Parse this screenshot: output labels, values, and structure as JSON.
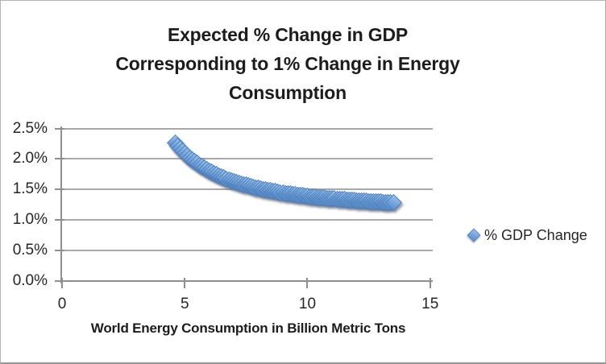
{
  "chart_data": {
    "type": "scatter",
    "title_lines": [
      "Expected % Change in GDP",
      "Corresponding to 1% Change in Energy",
      "Consumption"
    ],
    "xlabel": "World Energy Consumption in Billion Metric Tons",
    "ylabel": "",
    "x_ticks": [
      "0",
      "5",
      "10",
      "15"
    ],
    "x_tick_values": [
      0,
      5,
      10,
      15
    ],
    "y_tick_labels": [
      "0.0%",
      "0.5%",
      "1.0%",
      "1.5%",
      "2.0%",
      "2.5%"
    ],
    "y_tick_values": [
      0.0,
      0.5,
      1.0,
      1.5,
      2.0,
      2.5
    ],
    "xlim": [
      0,
      15
    ],
    "ylim_percent": [
      0,
      2.5
    ],
    "grid": "horizontal-only",
    "legend_position": "middle-right",
    "series": [
      {
        "name": "% GDP Change",
        "marker": "diamond",
        "points_x_billion_metric_tons_y_pct_gdp_change": [
          [
            4.6,
            2.257
          ],
          [
            4.7,
            2.21
          ],
          [
            4.8,
            2.166
          ],
          [
            4.9,
            2.126
          ],
          [
            5,
            2.087
          ],
          [
            5.1,
            2.051
          ],
          [
            5.2,
            2.017
          ],
          [
            5.3,
            1.984
          ],
          [
            5.4,
            1.954
          ],
          [
            5.5,
            1.925
          ],
          [
            5.6,
            1.898
          ],
          [
            5.7,
            1.872
          ],
          [
            5.8,
            1.847
          ],
          [
            5.9,
            1.824
          ],
          [
            6,
            1.802
          ],
          [
            6.1,
            1.781
          ],
          [
            6.2,
            1.76
          ],
          [
            6.3,
            1.741
          ],
          [
            6.4,
            1.723
          ],
          [
            6.5,
            1.706
          ],
          [
            6.6,
            1.689
          ],
          [
            6.7,
            1.673
          ],
          [
            6.8,
            1.658
          ],
          [
            6.9,
            1.643
          ],
          [
            7,
            1.63
          ],
          [
            7.1,
            1.616
          ],
          [
            7.2,
            1.603
          ],
          [
            7.3,
            1.591
          ],
          [
            7.4,
            1.579
          ],
          [
            7.5,
            1.568
          ],
          [
            7.6,
            1.557
          ],
          [
            7.7,
            1.547
          ],
          [
            7.8,
            1.537
          ],
          [
            7.9,
            1.527
          ],
          [
            8,
            1.518
          ],
          [
            8.1,
            1.509
          ],
          [
            8.2,
            1.5
          ],
          [
            8.3,
            1.492
          ],
          [
            8.4,
            1.484
          ],
          [
            8.5,
            1.476
          ],
          [
            8.6,
            1.469
          ],
          [
            8.7,
            1.462
          ],
          [
            8.8,
            1.455
          ],
          [
            8.9,
            1.448
          ],
          [
            9,
            1.441
          ],
          [
            9.1,
            1.435
          ],
          [
            9.2,
            1.429
          ],
          [
            9.3,
            1.423
          ],
          [
            9.4,
            1.417
          ],
          [
            9.5,
            1.412
          ],
          [
            9.6,
            1.406
          ],
          [
            9.7,
            1.401
          ],
          [
            9.8,
            1.396
          ],
          [
            9.9,
            1.391
          ],
          [
            10,
            1.387
          ],
          [
            10.1,
            1.382
          ],
          [
            10.2,
            1.377
          ],
          [
            10.3,
            1.373
          ],
          [
            10.4,
            1.369
          ],
          [
            10.5,
            1.365
          ],
          [
            10.6,
            1.361
          ],
          [
            10.7,
            1.357
          ],
          [
            10.8,
            1.353
          ],
          [
            10.9,
            1.35
          ],
          [
            11,
            1.346
          ],
          [
            11.1,
            1.343
          ],
          [
            11.2,
            1.339
          ],
          [
            11.3,
            1.336
          ],
          [
            11.4,
            1.333
          ],
          [
            11.5,
            1.33
          ],
          [
            11.6,
            1.327
          ],
          [
            11.7,
            1.324
          ],
          [
            11.8,
            1.321
          ],
          [
            11.9,
            1.318
          ],
          [
            12,
            1.315
          ],
          [
            12.1,
            1.313
          ],
          [
            12.2,
            1.31
          ],
          [
            12.3,
            1.307
          ],
          [
            12.4,
            1.305
          ],
          [
            12.5,
            1.302
          ],
          [
            12.6,
            1.3
          ],
          [
            12.7,
            1.298
          ],
          [
            12.8,
            1.296
          ],
          [
            12.9,
            1.293
          ],
          [
            13,
            1.291
          ],
          [
            13.1,
            1.289
          ],
          [
            13.2,
            1.287
          ],
          [
            13.3,
            1.285
          ],
          [
            13.4,
            1.283
          ],
          [
            13.5,
            1.281
          ]
        ]
      }
    ]
  },
  "legend": {
    "label": "% GDP Change"
  },
  "colors": {
    "marker_fill": "#74a3da",
    "marker_fill_light": "#95bde9",
    "marker_border": "#4d7fbc",
    "marker_shadow": "#606a80",
    "gridline": "#a9a9a9",
    "axis": "#8f8f8f",
    "text": "#262626",
    "background": "#ffffff",
    "chart_border": "#b5b5b5"
  }
}
